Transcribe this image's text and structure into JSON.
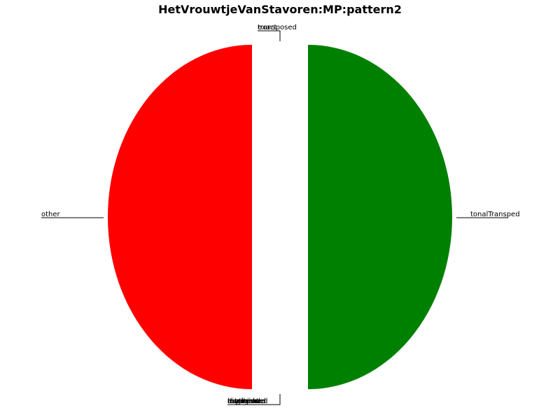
{
  "chart_data": {
    "type": "pie",
    "title": "HetVrouwtjeVanStavoren:MP:pattern2",
    "start_angle_deg": 90,
    "direction": "counterclockwise",
    "explode": "all",
    "slices": [
      {
        "label": "other",
        "value": 50,
        "color": "#ff0000"
      },
      {
        "label": "tonal",
        "value": 0,
        "color": "#008000"
      },
      {
        "label": "rhythmic",
        "value": 0,
        "color": "#0000ff"
      },
      {
        "label": "augmented",
        "value": 0,
        "color": "#00bfbf"
      },
      {
        "label": "diminished",
        "value": 0,
        "color": "#bf00bf"
      },
      {
        "label": "retrograde",
        "value": 0,
        "color": "#bfbf00"
      },
      {
        "label": "inversion",
        "value": 0,
        "color": "#000000"
      },
      {
        "label": "tonalTransped",
        "value": 50,
        "color": "#008000"
      },
      {
        "label": "exact",
        "value": 0,
        "color": "#ff0000"
      },
      {
        "label": "transposed",
        "value": 0,
        "color": "#0000ff"
      }
    ]
  }
}
